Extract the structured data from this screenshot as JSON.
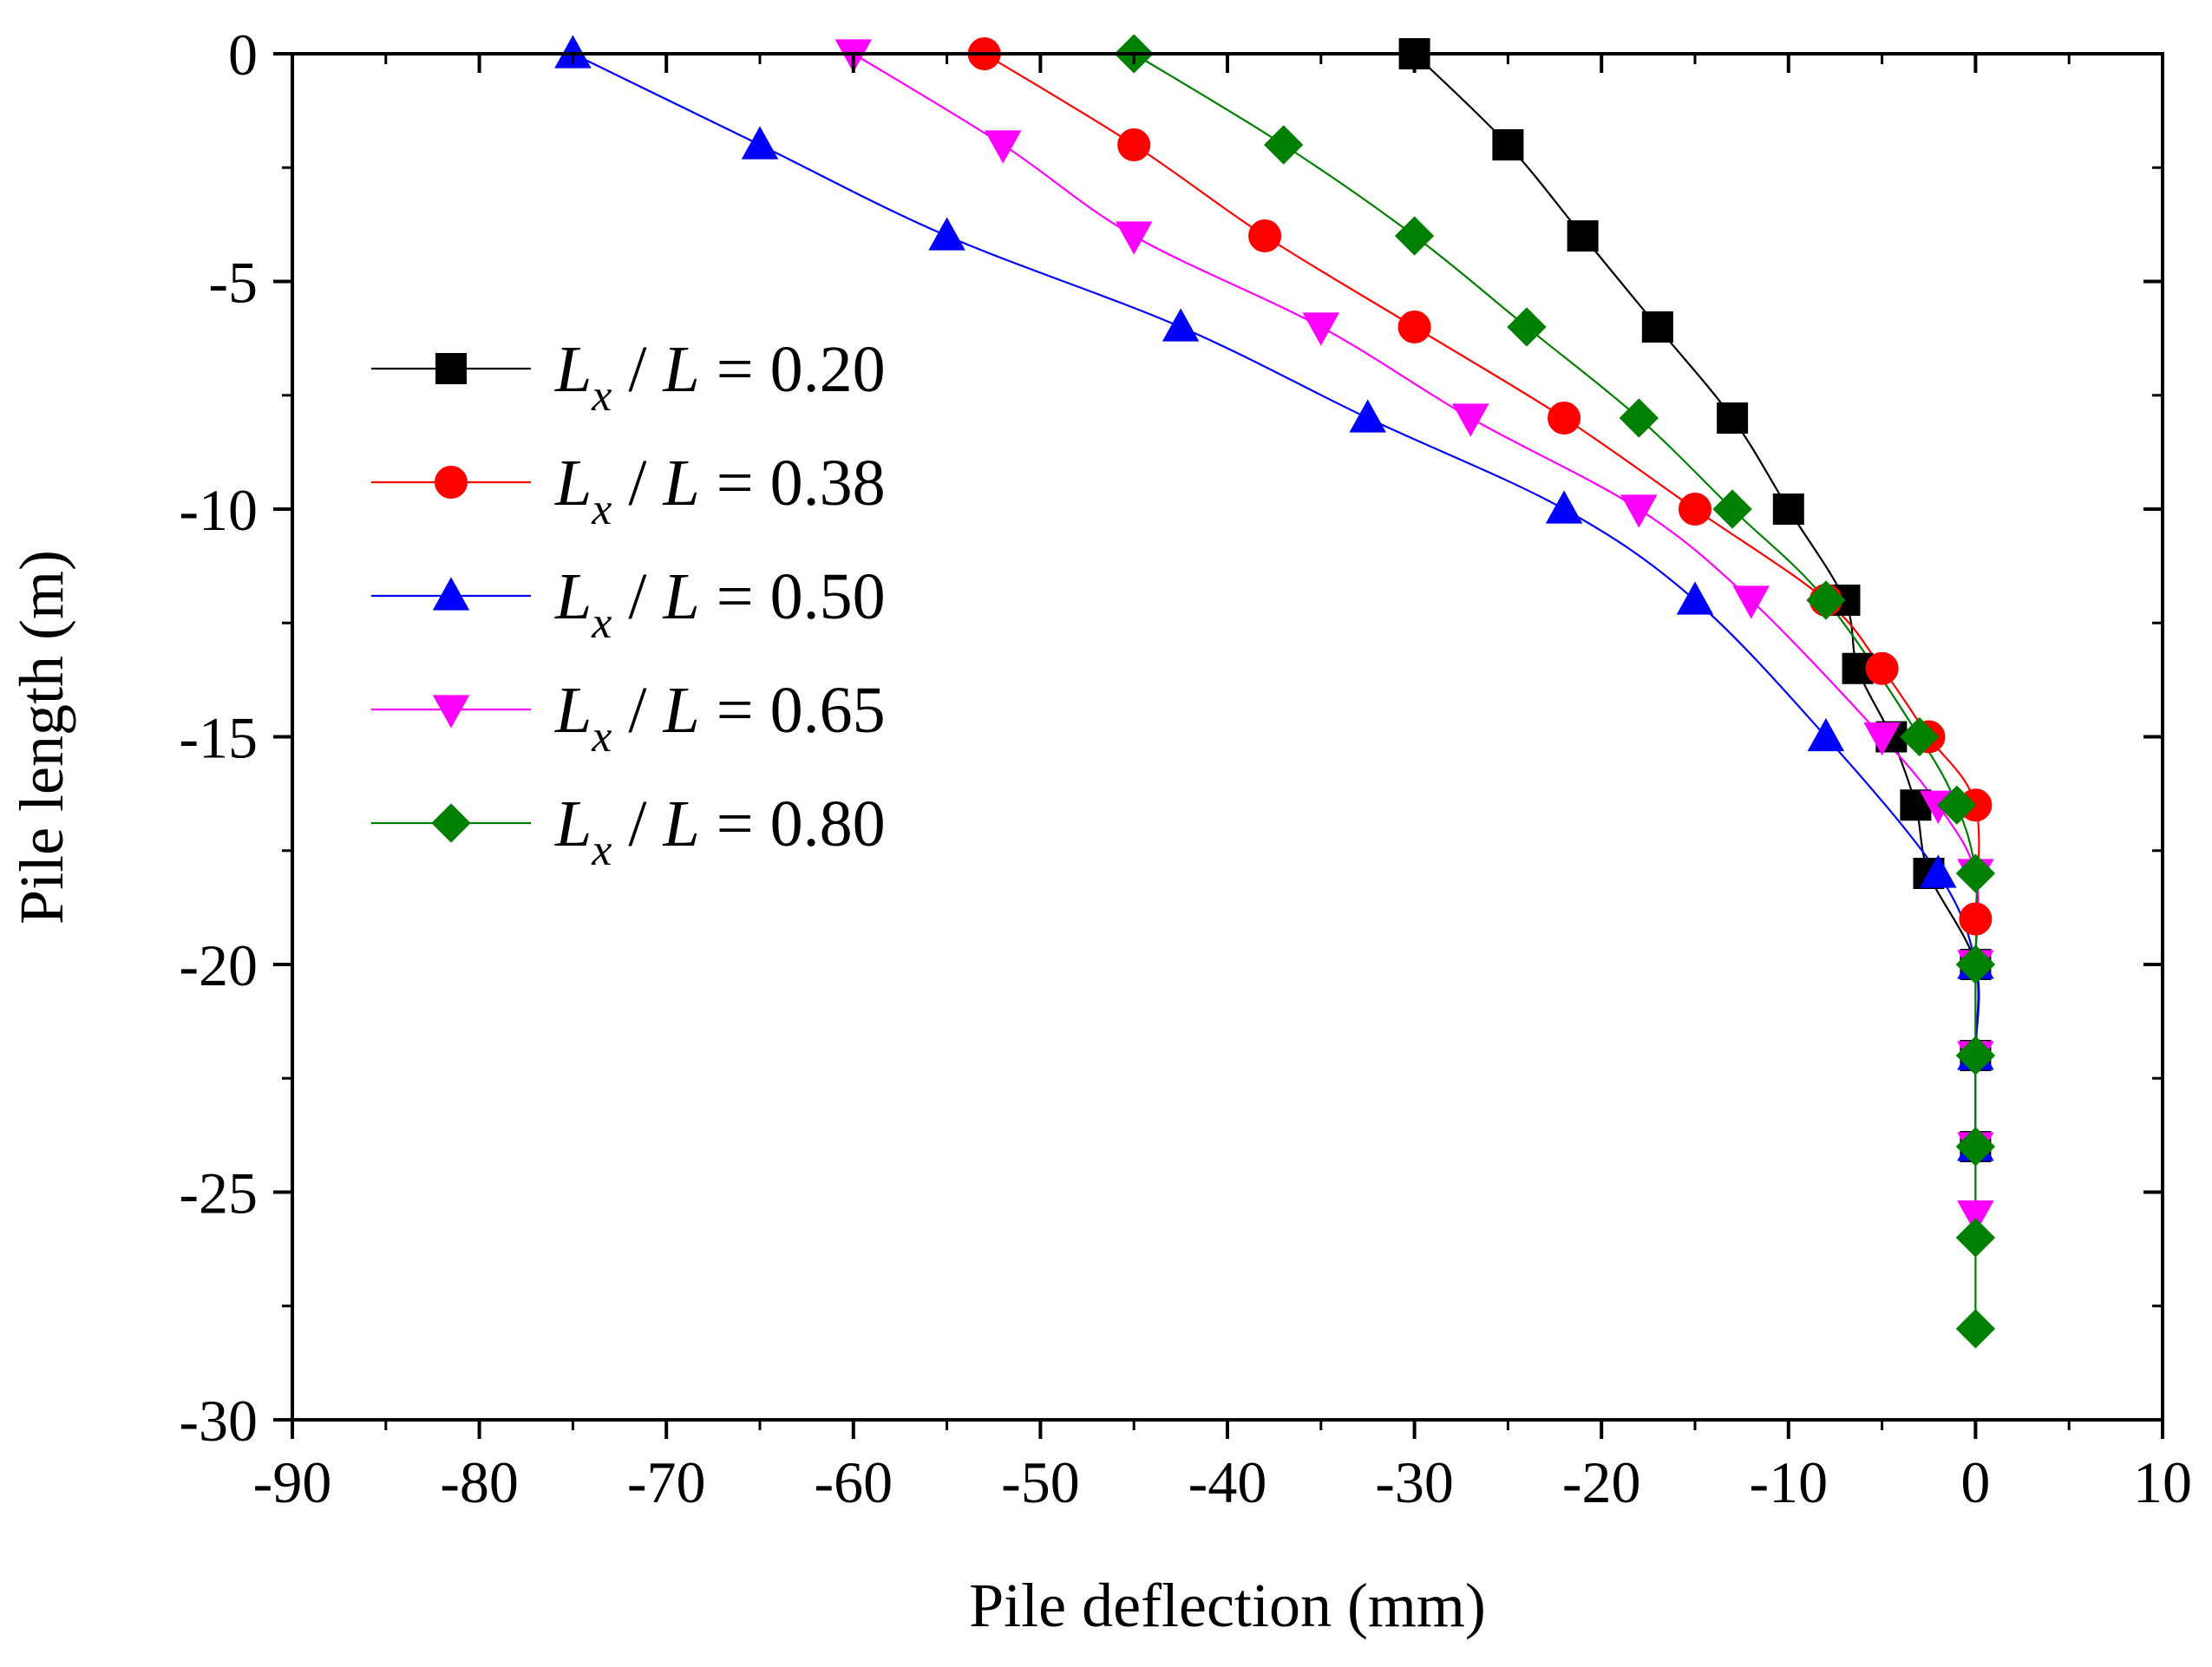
{
  "chart_data": {
    "type": "line",
    "xlabel": "Pile deflection (mm)",
    "ylabel": "Pile length (m)",
    "xlim": [
      -90,
      10
    ],
    "ylim": [
      -30,
      0
    ],
    "x_ticks": [
      -90,
      -80,
      -70,
      -60,
      -50,
      -40,
      -30,
      -20,
      -10,
      0,
      10
    ],
    "x_tick_labels": [
      "-90",
      "-80",
      "-70",
      "-60",
      "-50",
      "-40",
      "-30",
      "-20",
      "-10",
      "0",
      "10"
    ],
    "y_ticks": [
      0,
      -5,
      -10,
      -15,
      -20,
      -25,
      -30
    ],
    "y_tick_labels": [
      "0",
      "-5",
      "-10",
      "-15",
      "-20",
      "-25",
      "-30"
    ],
    "x_minor_step": 5,
    "y_minor_step": 2.5,
    "grid": false,
    "legend_position": "upper-left",
    "series": [
      {
        "name": "Lx / L = 0.20",
        "legend": {
          "var": "L",
          "sub": "x",
          "rest": " / L = 0.20"
        },
        "color": "#000000",
        "marker": "square",
        "points": [
          [
            -30,
            0
          ],
          [
            -25,
            -2
          ],
          [
            -21,
            -4
          ],
          [
            -17,
            -6
          ],
          [
            -13,
            -8
          ],
          [
            -10,
            -10
          ],
          [
            -7,
            -12
          ],
          [
            -6.3,
            -13.5
          ],
          [
            -4.5,
            -15
          ],
          [
            -3.2,
            -16.5
          ],
          [
            -2.5,
            -18
          ],
          [
            0,
            -20
          ],
          [
            0,
            -22
          ],
          [
            0,
            -24
          ]
        ]
      },
      {
        "name": "Lx / L = 0.38",
        "legend": {
          "var": "L",
          "sub": "x",
          "rest": " / L = 0.38"
        },
        "color": "#ff0000",
        "marker": "circle",
        "points": [
          [
            -53,
            0
          ],
          [
            -45,
            -2
          ],
          [
            -38,
            -4
          ],
          [
            -30,
            -6
          ],
          [
            -22,
            -8
          ],
          [
            -15,
            -10
          ],
          [
            -8,
            -12
          ],
          [
            -5,
            -13.5
          ],
          [
            -2.5,
            -15
          ],
          [
            0,
            -16.5
          ],
          [
            0,
            -19
          ]
        ]
      },
      {
        "name": "Lx / L = 0.50",
        "legend": {
          "var": "L",
          "sub": "x",
          "rest": " / L = 0.50"
        },
        "color": "#0000ff",
        "marker": "triangle-up",
        "points": [
          [
            -75,
            0
          ],
          [
            -65,
            -2
          ],
          [
            -55,
            -4
          ],
          [
            -42.5,
            -6
          ],
          [
            -32.5,
            -8
          ],
          [
            -22,
            -10
          ],
          [
            -15,
            -12
          ],
          [
            -8,
            -15
          ],
          [
            -2,
            -18
          ],
          [
            0,
            -20
          ],
          [
            0,
            -22
          ],
          [
            0,
            -24
          ]
        ]
      },
      {
        "name": "Lx / L = 0.65",
        "legend": {
          "var": "L",
          "sub": "x",
          "rest": " / L = 0.65"
        },
        "color": "#ff00ff",
        "marker": "triangle-down",
        "points": [
          [
            -60,
            0
          ],
          [
            -52,
            -2
          ],
          [
            -45,
            -4
          ],
          [
            -35,
            -6
          ],
          [
            -27,
            -8
          ],
          [
            -18,
            -10
          ],
          [
            -12,
            -12
          ],
          [
            -5,
            -15
          ],
          [
            -2,
            -16.5
          ],
          [
            0,
            -18
          ],
          [
            0,
            -20
          ],
          [
            0,
            -22
          ],
          [
            0,
            -24
          ],
          [
            0,
            -25.5
          ]
        ]
      },
      {
        "name": "Lx / L = 0.80",
        "legend": {
          "var": "L",
          "sub": "x",
          "rest": " / L = 0.80"
        },
        "color": "#008000",
        "marker": "diamond",
        "points": [
          [
            -45,
            0
          ],
          [
            -37,
            -2
          ],
          [
            -30,
            -4
          ],
          [
            -24,
            -6
          ],
          [
            -18,
            -8
          ],
          [
            -13,
            -10
          ],
          [
            -8,
            -12
          ],
          [
            -3,
            -15
          ],
          [
            -1,
            -16.5
          ],
          [
            0,
            -18
          ],
          [
            0,
            -20
          ],
          [
            0,
            -22
          ],
          [
            0,
            -24
          ],
          [
            0,
            -26
          ],
          [
            0,
            -28
          ]
        ]
      }
    ]
  }
}
